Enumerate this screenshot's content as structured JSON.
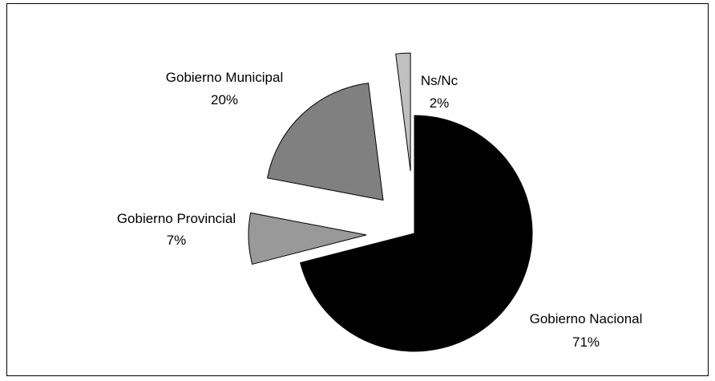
{
  "chart_data": {
    "type": "pie",
    "title": "",
    "categories": [
      "Gobierno Nacional",
      "Gobierno Provincial",
      "Gobierno Municipal",
      "Ns/Nc"
    ],
    "values": [
      71,
      7,
      20,
      2
    ],
    "unit": "%",
    "slices": [
      {
        "name": "Gobierno Nacional",
        "value": 71,
        "value_label": "71%",
        "color": "#000000"
      },
      {
        "name": "Gobierno Provincial",
        "value": 7,
        "value_label": "7%",
        "color": "#999999"
      },
      {
        "name": "Gobierno Municipal",
        "value": 20,
        "value_label": "20%",
        "color": "#808080"
      },
      {
        "name": "Ns/Nc",
        "value": 2,
        "value_label": "2%",
        "color": "#c0c0c0"
      }
    ],
    "exploded": true,
    "legend": "none"
  }
}
